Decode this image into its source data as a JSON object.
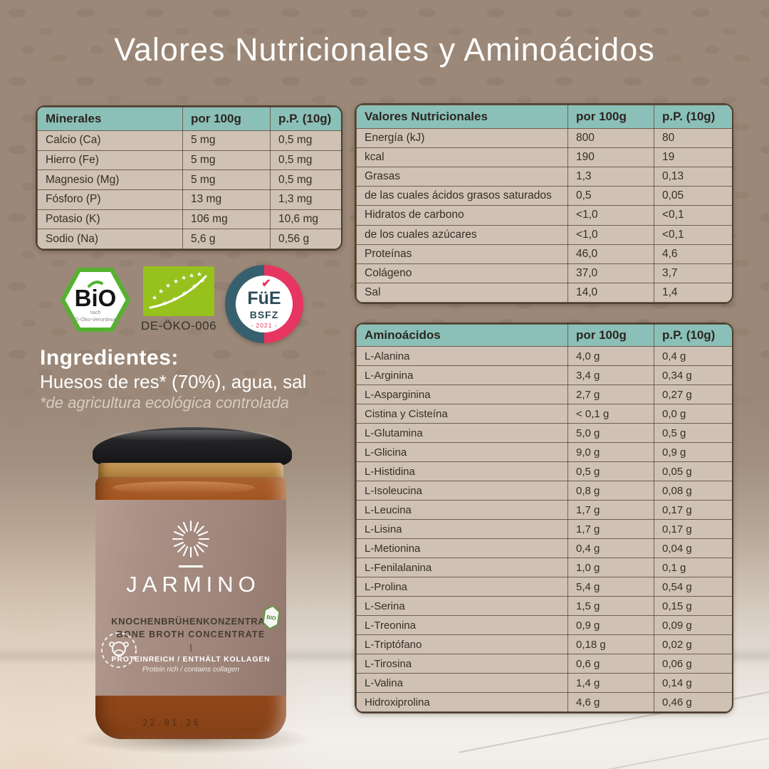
{
  "title": "Valores Nutricionales y Aminoácidos",
  "colors": {
    "backdrop": "#9b8878",
    "table_header_teal": "#8ac0b8",
    "table_row_beige": "#cfc2b4",
    "table_border": "#4d3e30",
    "bsfz_pink": "#e63560",
    "bsfz_teal": "#37606e",
    "eu_organic_green": "#97c11d",
    "bio_seal_green": "#55b230",
    "label_taupe": "#a88e83"
  },
  "tables": {
    "minerales": {
      "header": [
        "Minerales",
        "por 100g",
        "p.P. (10g)"
      ],
      "rows": [
        [
          "Calcio (Ca)",
          "5 mg",
          "0,5 mg"
        ],
        [
          "Hierro (Fe)",
          "5 mg",
          "0,5 mg"
        ],
        [
          "Magnesio (Mg)",
          "5 mg",
          "0,5 mg"
        ],
        [
          "Fósforo (P)",
          "13 mg",
          "1,3 mg"
        ],
        [
          "Potasio (K)",
          "106 mg",
          "10,6 mg"
        ],
        [
          "Sodio (Na)",
          "5,6 g",
          "0,56 g"
        ]
      ]
    },
    "valores_nutricionales": {
      "header": [
        "Valores Nutricionales",
        "por 100g",
        "p.P. (10g)"
      ],
      "rows": [
        [
          "Energía (kJ)",
          "800",
          "80"
        ],
        [
          "kcal",
          "190",
          "19"
        ],
        [
          "Grasas",
          "1,3",
          "0,13"
        ],
        [
          "de las cuales ácidos grasos saturados",
          "0,5",
          "0,05"
        ],
        [
          "Hidratos de carbono",
          "<1,0",
          "<0,1"
        ],
        [
          "de los cuales azúcares",
          "<1,0",
          "<0,1"
        ],
        [
          "Proteínas",
          "46,0",
          "4,6"
        ],
        [
          "Colágeno",
          "37,0",
          "3,7"
        ],
        [
          "Sal",
          "14,0",
          "1,4"
        ]
      ]
    },
    "aminoacidos": {
      "header": [
        "Aminoácidos",
        "por 100g",
        "p.P. (10g)"
      ],
      "rows": [
        [
          "L-Alanina",
          "4,0 g",
          "0,4 g"
        ],
        [
          "L-Arginina",
          "3,4 g",
          "0,34 g"
        ],
        [
          "L-Asparginina",
          "2,7 g",
          "0,27 g"
        ],
        [
          "Cistina y Cisteína",
          "< 0,1 g",
          "0,0 g"
        ],
        [
          "L-Glutamina",
          "5,0 g",
          "0,5 g"
        ],
        [
          "L-Glicina",
          "9,0 g",
          "0,9 g"
        ],
        [
          "L-Histidina",
          "0,5 g",
          "0,05 g"
        ],
        [
          "L-Isoleucina",
          "0,8 g",
          "0,08 g"
        ],
        [
          "L-Leucina",
          "1,7 g",
          "0,17 g"
        ],
        [
          "L-Lisina",
          "1,7 g",
          "0,17 g"
        ],
        [
          "L-Metionina",
          "0,4 g",
          "0,04 g"
        ],
        [
          "L-Fenilalanina",
          "1,0 g",
          "0,1 g"
        ],
        [
          "L-Prolina",
          "5,4 g",
          "0,54 g"
        ],
        [
          "L-Serina",
          "1,5 g",
          "0,15 g"
        ],
        [
          "L-Treonina",
          "0,9 g",
          "0,09 g"
        ],
        [
          "L-Triptófano",
          "0,18 g",
          "0,02 g"
        ],
        [
          "L-Tirosina",
          "0,6 g",
          "0,06 g"
        ],
        [
          "L-Valina",
          "1,4 g",
          "0,14 g"
        ],
        [
          "Hidroxiprolina",
          "4,6 g",
          "0,46 g"
        ]
      ]
    }
  },
  "certifications": {
    "bio_seal": {
      "word": "BiO",
      "sub1": "nach",
      "sub2": "EG-Öko-Verordnung"
    },
    "eu_organic": {
      "code": "DE-ÖKO-006"
    },
    "bsfz": {
      "check": "✔",
      "line1": "FüE",
      "line2": "BSFZ",
      "line3": "- 2021 -"
    }
  },
  "ingredients": {
    "heading": "Ingredientes:",
    "text": "Huesos de res* (70%), agua, sal",
    "footnote": "*de agricultura ecológica controlada"
  },
  "jar": {
    "brand": "JARMINO",
    "product_de": "KNOCHENBRÜHENKONZENTRAT",
    "product_en": "BONE BROTH CONCENTRATE",
    "claim_de": "PROTEINREICH / ENTHÄLT KOLLAGEN",
    "claim_en": "Protein rich / contains collagen",
    "label_badge": "BIO",
    "date_stamp": "22.01.26"
  }
}
